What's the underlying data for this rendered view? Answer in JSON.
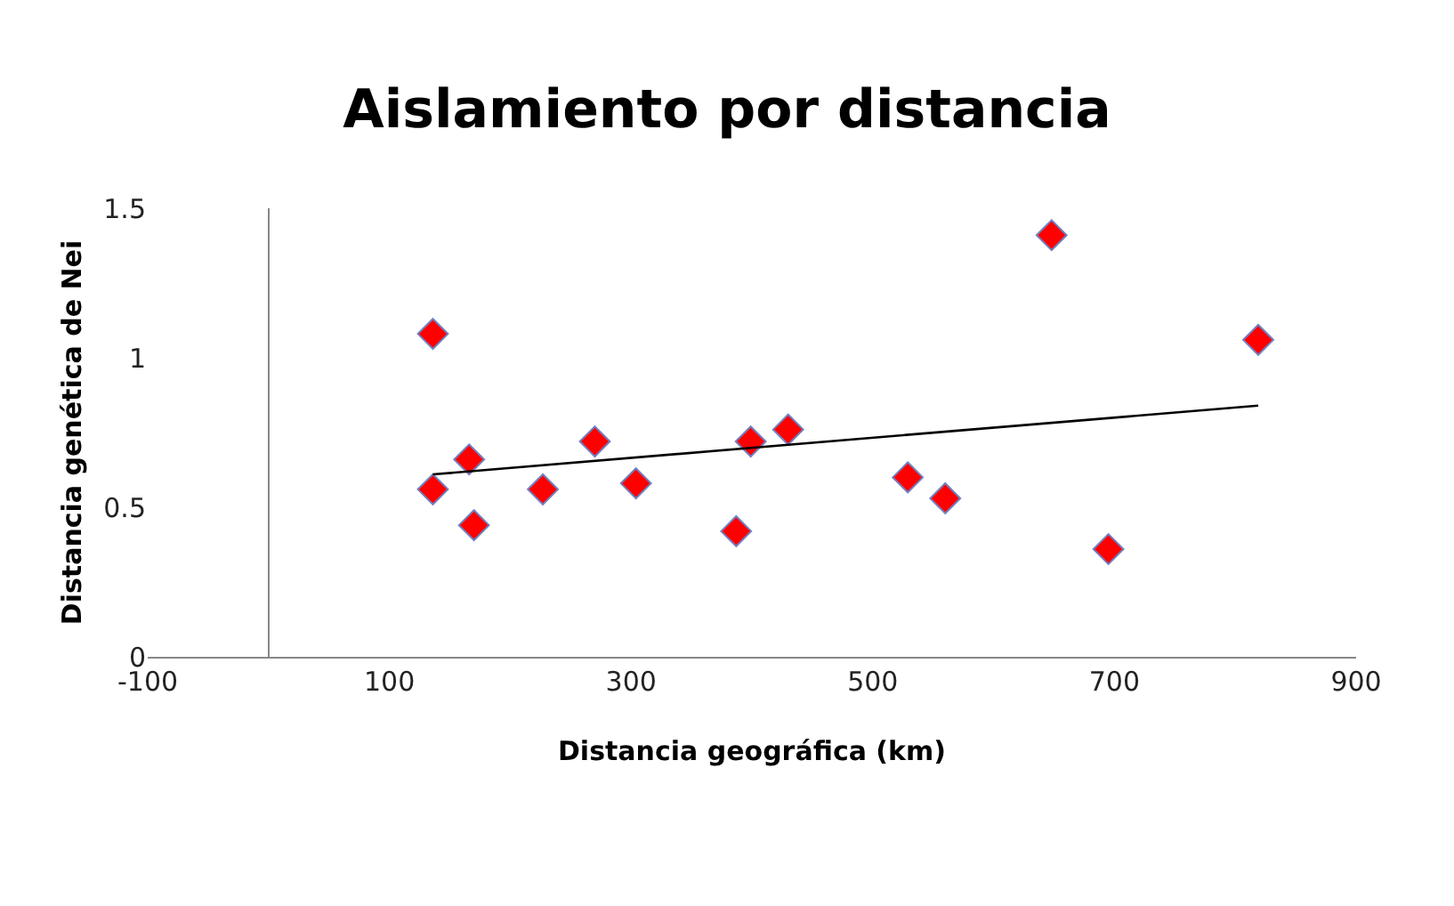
{
  "chart_data": {
    "type": "scatter",
    "title": "Aislamiento por distancia",
    "xlabel": "Distancia geográfica (km)",
    "ylabel": "Distancia genética de Nei",
    "x": [
      136,
      136,
      166,
      170,
      227,
      270,
      304,
      387,
      399,
      430,
      529,
      560,
      648,
      695,
      819
    ],
    "series": [
      {
        "color": "#ff0000",
        "marker": "diamond",
        "values": [
          1.08,
          0.56,
          0.66,
          0.44,
          0.56,
          0.72,
          0.58,
          0.42,
          0.72,
          0.76,
          0.6,
          0.53,
          1.41,
          0.36,
          1.06
        ]
      },
      {
        "type": "line",
        "color": "#000000",
        "marker": "none",
        "x": [
          136,
          819
        ],
        "values": [
          0.61,
          0.84
        ]
      }
    ],
    "xlim": [
      -100,
      900
    ],
    "xticks": [
      -100,
      100,
      300,
      500,
      700,
      900
    ],
    "ylim": [
      0,
      1.5
    ],
    "yticks": [
      0,
      0.5,
      1,
      1.5
    ]
  }
}
